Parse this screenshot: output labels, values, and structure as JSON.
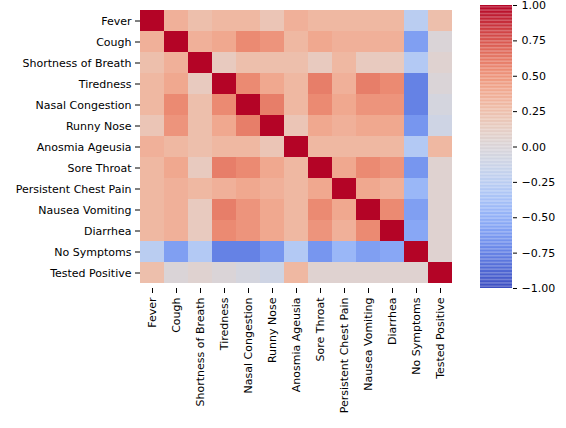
{
  "chart_data": {
    "type": "heatmap",
    "x": [
      "Fever",
      "Cough",
      "Shortness of Breath",
      "Tiredness",
      "Nasal Congestion",
      "Runny Nose",
      "Anosmia Ageusia",
      "Sore Throat",
      "Persistent Chest Pain",
      "Nausea Vomiting",
      "Diarrhea",
      "No Symptoms",
      "Tested Positive"
    ],
    "y": [
      "Fever",
      "Cough",
      "Shortness of Breath",
      "Tiredness",
      "Nasal Congestion",
      "Runny Nose",
      "Anosmia Ageusia",
      "Sore Throat",
      "Persistent Chest Pain",
      "Nausea Vomiting",
      "Diarrhea",
      "No Symptoms",
      "Tested Positive"
    ],
    "cells": [
      [
        1,
        0.35,
        0.25,
        0.3,
        0.3,
        0.2,
        0.35,
        0.3,
        0.3,
        0.3,
        0.3,
        -0.25,
        0.25
      ],
      [
        0.35,
        1,
        0.35,
        0.4,
        0.55,
        0.5,
        0.3,
        0.4,
        0.35,
        0.35,
        0.35,
        -0.6,
        0
      ],
      [
        0.25,
        0.35,
        1,
        0.15,
        0.25,
        0.25,
        0.25,
        0.15,
        0.3,
        0.15,
        0.15,
        -0.3,
        0.05
      ],
      [
        0.3,
        0.4,
        0.15,
        1,
        0.55,
        0.4,
        0.3,
        0.6,
        0.35,
        0.6,
        0.55,
        -0.75,
        0
      ],
      [
        0.3,
        0.55,
        0.25,
        0.55,
        1,
        0.6,
        0.3,
        0.55,
        0.4,
        0.5,
        0.5,
        -0.75,
        -0.05
      ],
      [
        0.2,
        0.5,
        0.25,
        0.4,
        0.6,
        1,
        0.2,
        0.4,
        0.35,
        0.4,
        0.4,
        -0.65,
        -0.1
      ],
      [
        0.35,
        0.3,
        0.25,
        0.3,
        0.3,
        0.2,
        1,
        0.3,
        0.3,
        0.3,
        0.3,
        -0.3,
        0.3
      ],
      [
        0.3,
        0.4,
        0.15,
        0.6,
        0.55,
        0.4,
        0.3,
        1,
        0.4,
        0.55,
        0.5,
        -0.65,
        0.05
      ],
      [
        0.3,
        0.35,
        0.3,
        0.35,
        0.4,
        0.35,
        0.3,
        0.4,
        1,
        0.4,
        0.35,
        -0.45,
        0.05
      ],
      [
        0.3,
        0.35,
        0.15,
        0.6,
        0.5,
        0.4,
        0.3,
        0.55,
        0.4,
        1,
        0.55,
        -0.6,
        0.05
      ],
      [
        0.3,
        0.35,
        0.15,
        0.55,
        0.5,
        0.4,
        0.3,
        0.5,
        0.35,
        0.55,
        1,
        -0.55,
        0.05
      ],
      [
        -0.25,
        -0.6,
        -0.3,
        -0.75,
        -0.75,
        -0.65,
        -0.3,
        -0.65,
        -0.45,
        -0.6,
        -0.55,
        1,
        0.05
      ],
      [
        0.25,
        0,
        0.05,
        0,
        -0.05,
        -0.1,
        0.3,
        0.05,
        0.05,
        0.05,
        0.05,
        0.05,
        1
      ]
    ],
    "colorbar_range": [
      -1,
      1
    ],
    "colorbar_ticks": [
      {
        "value": -1,
        "label": "−1.00"
      },
      {
        "value": -0.75,
        "label": "−0.75"
      },
      {
        "value": -0.5,
        "label": "−0.50"
      },
      {
        "value": -0.25,
        "label": "−0.25"
      },
      {
        "value": 0,
        "label": "0.00"
      },
      {
        "value": 0.25,
        "label": "0.25"
      },
      {
        "value": 0.5,
        "label": "0.50"
      },
      {
        "value": 0.75,
        "label": "0.75"
      },
      {
        "value": 1,
        "label": "1.00"
      }
    ]
  }
}
